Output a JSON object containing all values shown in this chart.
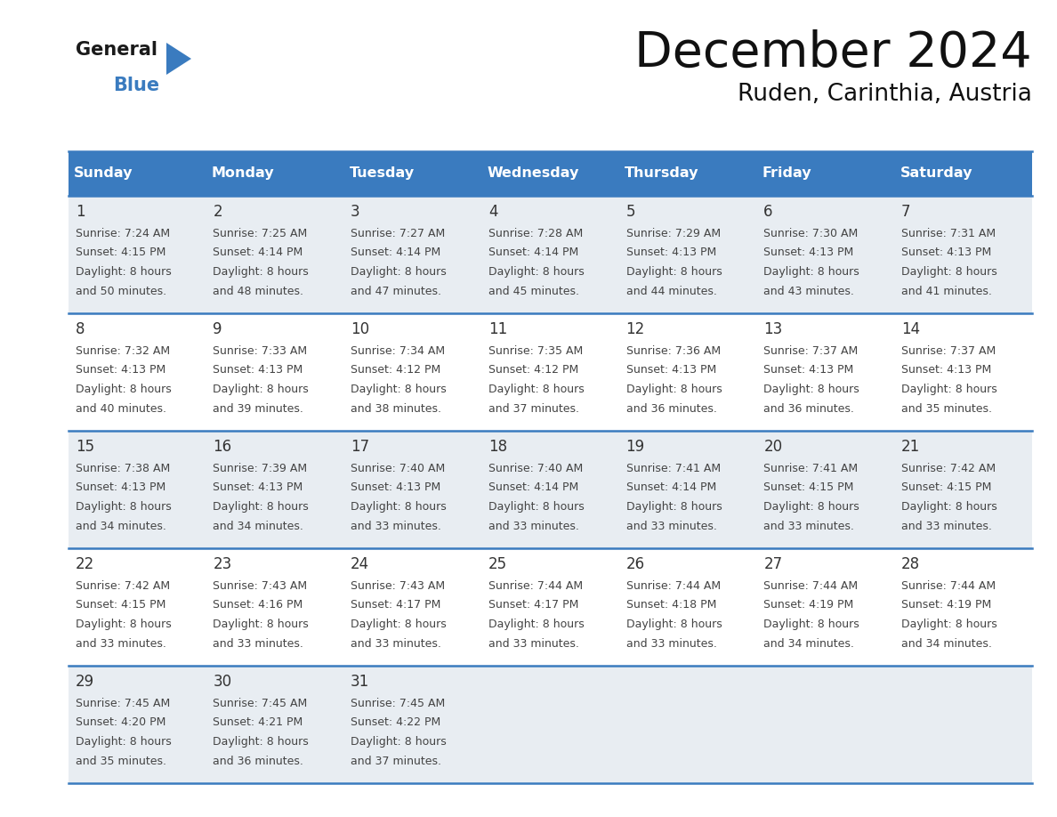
{
  "title": "December 2024",
  "subtitle": "Ruden, Carinthia, Austria",
  "days_of_week": [
    "Sunday",
    "Monday",
    "Tuesday",
    "Wednesday",
    "Thursday",
    "Friday",
    "Saturday"
  ],
  "header_bg": "#3a7bbf",
  "header_text": "#ffffff",
  "row_odd_bg": "#e8edf2",
  "row_even_bg": "#ffffff",
  "separator_color": "#3a7bbf",
  "day_num_color": "#333333",
  "cell_text_color": "#444444",
  "title_color": "#111111",
  "subtitle_color": "#111111",
  "calendar_data": [
    {
      "day": 1,
      "sunrise": "7:24 AM",
      "sunset": "4:15 PM",
      "dl1": "Daylight: 8 hours",
      "dl2": "and 50 minutes."
    },
    {
      "day": 2,
      "sunrise": "7:25 AM",
      "sunset": "4:14 PM",
      "dl1": "Daylight: 8 hours",
      "dl2": "and 48 minutes."
    },
    {
      "day": 3,
      "sunrise": "7:27 AM",
      "sunset": "4:14 PM",
      "dl1": "Daylight: 8 hours",
      "dl2": "and 47 minutes."
    },
    {
      "day": 4,
      "sunrise": "7:28 AM",
      "sunset": "4:14 PM",
      "dl1": "Daylight: 8 hours",
      "dl2": "and 45 minutes."
    },
    {
      "day": 5,
      "sunrise": "7:29 AM",
      "sunset": "4:13 PM",
      "dl1": "Daylight: 8 hours",
      "dl2": "and 44 minutes."
    },
    {
      "day": 6,
      "sunrise": "7:30 AM",
      "sunset": "4:13 PM",
      "dl1": "Daylight: 8 hours",
      "dl2": "and 43 minutes."
    },
    {
      "day": 7,
      "sunrise": "7:31 AM",
      "sunset": "4:13 PM",
      "dl1": "Daylight: 8 hours",
      "dl2": "and 41 minutes."
    },
    {
      "day": 8,
      "sunrise": "7:32 AM",
      "sunset": "4:13 PM",
      "dl1": "Daylight: 8 hours",
      "dl2": "and 40 minutes."
    },
    {
      "day": 9,
      "sunrise": "7:33 AM",
      "sunset": "4:13 PM",
      "dl1": "Daylight: 8 hours",
      "dl2": "and 39 minutes."
    },
    {
      "day": 10,
      "sunrise": "7:34 AM",
      "sunset": "4:12 PM",
      "dl1": "Daylight: 8 hours",
      "dl2": "and 38 minutes."
    },
    {
      "day": 11,
      "sunrise": "7:35 AM",
      "sunset": "4:12 PM",
      "dl1": "Daylight: 8 hours",
      "dl2": "and 37 minutes."
    },
    {
      "day": 12,
      "sunrise": "7:36 AM",
      "sunset": "4:13 PM",
      "dl1": "Daylight: 8 hours",
      "dl2": "and 36 minutes."
    },
    {
      "day": 13,
      "sunrise": "7:37 AM",
      "sunset": "4:13 PM",
      "dl1": "Daylight: 8 hours",
      "dl2": "and 36 minutes."
    },
    {
      "day": 14,
      "sunrise": "7:37 AM",
      "sunset": "4:13 PM",
      "dl1": "Daylight: 8 hours",
      "dl2": "and 35 minutes."
    },
    {
      "day": 15,
      "sunrise": "7:38 AM",
      "sunset": "4:13 PM",
      "dl1": "Daylight: 8 hours",
      "dl2": "and 34 minutes."
    },
    {
      "day": 16,
      "sunrise": "7:39 AM",
      "sunset": "4:13 PM",
      "dl1": "Daylight: 8 hours",
      "dl2": "and 34 minutes."
    },
    {
      "day": 17,
      "sunrise": "7:40 AM",
      "sunset": "4:13 PM",
      "dl1": "Daylight: 8 hours",
      "dl2": "and 33 minutes."
    },
    {
      "day": 18,
      "sunrise": "7:40 AM",
      "sunset": "4:14 PM",
      "dl1": "Daylight: 8 hours",
      "dl2": "and 33 minutes."
    },
    {
      "day": 19,
      "sunrise": "7:41 AM",
      "sunset": "4:14 PM",
      "dl1": "Daylight: 8 hours",
      "dl2": "and 33 minutes."
    },
    {
      "day": 20,
      "sunrise": "7:41 AM",
      "sunset": "4:15 PM",
      "dl1": "Daylight: 8 hours",
      "dl2": "and 33 minutes."
    },
    {
      "day": 21,
      "sunrise": "7:42 AM",
      "sunset": "4:15 PM",
      "dl1": "Daylight: 8 hours",
      "dl2": "and 33 minutes."
    },
    {
      "day": 22,
      "sunrise": "7:42 AM",
      "sunset": "4:15 PM",
      "dl1": "Daylight: 8 hours",
      "dl2": "and 33 minutes."
    },
    {
      "day": 23,
      "sunrise": "7:43 AM",
      "sunset": "4:16 PM",
      "dl1": "Daylight: 8 hours",
      "dl2": "and 33 minutes."
    },
    {
      "day": 24,
      "sunrise": "7:43 AM",
      "sunset": "4:17 PM",
      "dl1": "Daylight: 8 hours",
      "dl2": "and 33 minutes."
    },
    {
      "day": 25,
      "sunrise": "7:44 AM",
      "sunset": "4:17 PM",
      "dl1": "Daylight: 8 hours",
      "dl2": "and 33 minutes."
    },
    {
      "day": 26,
      "sunrise": "7:44 AM",
      "sunset": "4:18 PM",
      "dl1": "Daylight: 8 hours",
      "dl2": "and 33 minutes."
    },
    {
      "day": 27,
      "sunrise": "7:44 AM",
      "sunset": "4:19 PM",
      "dl1": "Daylight: 8 hours",
      "dl2": "and 34 minutes."
    },
    {
      "day": 28,
      "sunrise": "7:44 AM",
      "sunset": "4:19 PM",
      "dl1": "Daylight: 8 hours",
      "dl2": "and 34 minutes."
    },
    {
      "day": 29,
      "sunrise": "7:45 AM",
      "sunset": "4:20 PM",
      "dl1": "Daylight: 8 hours",
      "dl2": "and 35 minutes."
    },
    {
      "day": 30,
      "sunrise": "7:45 AM",
      "sunset": "4:21 PM",
      "dl1": "Daylight: 8 hours",
      "dl2": "and 36 minutes."
    },
    {
      "day": 31,
      "sunrise": "7:45 AM",
      "sunset": "4:22 PM",
      "dl1": "Daylight: 8 hours",
      "dl2": "and 37 minutes."
    }
  ]
}
